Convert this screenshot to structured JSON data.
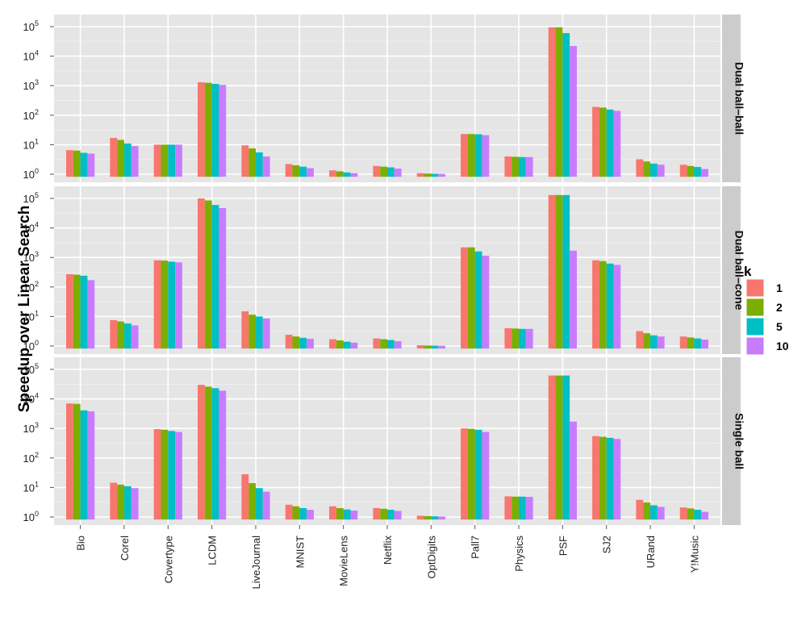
{
  "chart_data": {
    "type": "bar",
    "ylabel": "Speedup over Linear Search",
    "xlabel": "",
    "yscale": "log10",
    "ylim": [
      1,
      100000
    ],
    "ytick_exponents": [
      "0",
      "1",
      "2",
      "3",
      "4",
      "5"
    ],
    "ytick_base": "10",
    "grid": true,
    "categories": [
      "Bio",
      "Corel",
      "Covertype",
      "LCDM",
      "LiveJournal",
      "MNIST",
      "MovieLens",
      "Netflix",
      "OptDigits",
      "Pall7",
      "Physics",
      "PSF",
      "SJ2",
      "URand",
      "Y!Music"
    ],
    "legend": {
      "title": "k",
      "placement": "right",
      "entries": [
        {
          "label": "1",
          "color": "#F8766D"
        },
        {
          "label": "2",
          "color": "#7CAE00"
        },
        {
          "label": "5",
          "color": "#00BFC4"
        },
        {
          "label": "10",
          "color": "#C77CFF"
        }
      ]
    },
    "panels": [
      {
        "name": "Dual ball–ball",
        "series": [
          {
            "name": "1",
            "values": [
              6.5,
              17,
              10,
              1300,
              9.5,
              2.2,
              1.35,
              1.9,
              1.08,
              23,
              4,
              95000,
              190,
              3.2,
              2.1
            ]
          },
          {
            "name": "2",
            "values": [
              6.3,
              14.5,
              10,
              1250,
              7.5,
              2.0,
              1.25,
              1.8,
              1.05,
              23,
              3.9,
              95000,
              180,
              2.7,
              1.9
            ]
          },
          {
            "name": "5",
            "values": [
              5.3,
              11,
              10,
              1150,
              5.5,
              1.8,
              1.15,
              1.7,
              1.03,
              22.5,
              3.8,
              60000,
              155,
              2.3,
              1.75
            ]
          },
          {
            "name": "10",
            "values": [
              5.0,
              9,
              10,
              1050,
              4.0,
              1.6,
              1.08,
              1.55,
              1.02,
              21,
              3.8,
              22000,
              140,
              2.1,
              1.5
            ]
          }
        ]
      },
      {
        "name": "Dual ball–cone",
        "series": [
          {
            "name": "1",
            "values": [
              270,
              7.5,
              800,
              100000,
              15,
              2.4,
              1.7,
              1.8,
              1.06,
              2200,
              4,
              130000,
              800,
              3.2,
              2.1
            ]
          },
          {
            "name": "2",
            "values": [
              260,
              6.8,
              780,
              85000,
              11.5,
              2.1,
              1.55,
              1.7,
              1.04,
              2200,
              3.9,
              130000,
              750,
              2.7,
              1.95
            ]
          },
          {
            "name": "5",
            "values": [
              240,
              5.8,
              720,
              60000,
              10,
              1.9,
              1.4,
              1.6,
              1.03,
              1600,
              3.8,
              130000,
              620,
              2.3,
              1.8
            ]
          },
          {
            "name": "10",
            "values": [
              170,
              5.0,
              680,
              47000,
              8.5,
              1.75,
              1.3,
              1.45,
              1.02,
              1150,
              3.8,
              1700,
              560,
              2.1,
              1.65
            ]
          }
        ]
      },
      {
        "name": "Single ball",
        "series": [
          {
            "name": "1",
            "values": [
              7000,
              14.5,
              950,
              30000,
              28,
              2.6,
              2.3,
              2.0,
              1.1,
              1000,
              5,
              62000,
              550,
              3.8,
              2.1
            ]
          },
          {
            "name": "2",
            "values": [
              6800,
              12.5,
              900,
              26000,
              14,
              2.3,
              2.0,
              1.9,
              1.07,
              970,
              4.9,
              62000,
              520,
              3.1,
              1.95
            ]
          },
          {
            "name": "5",
            "values": [
              4100,
              11,
              820,
              23000,
              9.5,
              2.0,
              1.8,
              1.75,
              1.05,
              900,
              4.9,
              62000,
              480,
              2.5,
              1.75
            ]
          },
          {
            "name": "10",
            "values": [
              3800,
              9.5,
              760,
              19000,
              7.2,
              1.75,
              1.65,
              1.6,
              1.03,
              760,
              4.8,
              1700,
              440,
              2.2,
              1.5
            ]
          }
        ]
      }
    ]
  }
}
